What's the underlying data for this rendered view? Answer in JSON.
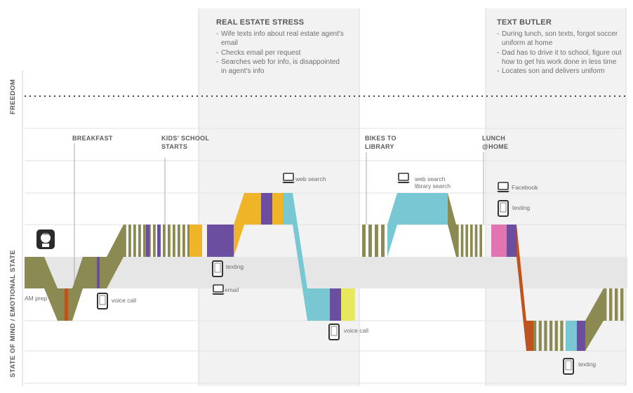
{
  "axis": {
    "freedom": "FREEDOM",
    "state": "STATE OF MIND / EMOTIONAL STATE"
  },
  "panels": [
    {
      "id": "real-estate",
      "title": "REAL ESTATE STRESS",
      "items": [
        "Wife texts info about real estate agent's email",
        "Checks email per request",
        "Searches web for info, is disappointed in agent's info"
      ]
    },
    {
      "id": "text-butler",
      "title": "TEXT BUTLER",
      "items": [
        "During lunch, son texts, forgot soccer uniform at home",
        "Dad has to drive it to school, figure out how to get his work done in less time",
        "Locates son and delivers uniform"
      ]
    }
  ],
  "milestones": [
    {
      "id": "breakfast",
      "label": "BREAKFAST"
    },
    {
      "id": "school",
      "label": "KIDS' SCHOOL STARTS"
    },
    {
      "id": "library",
      "label": "BIKES TO LIBRARY"
    },
    {
      "id": "lunch",
      "label": "LUNCH @HOME"
    }
  ],
  "touchpoints": [
    {
      "id": "am-prep",
      "label": "AM prep",
      "icon": "none"
    },
    {
      "id": "voice-call-1",
      "label": "voice call",
      "icon": "phone-icon"
    },
    {
      "id": "texting-1",
      "label": "texting",
      "icon": "phone-icon"
    },
    {
      "id": "email",
      "label": "email",
      "icon": "laptop-icon"
    },
    {
      "id": "web-search-1",
      "label": "web search",
      "icon": "laptop-icon"
    },
    {
      "id": "voice-call-2",
      "label": "voice call",
      "icon": "phone-icon"
    },
    {
      "id": "web-library-search",
      "label": "web search library search",
      "icon": "laptop-icon"
    },
    {
      "id": "facebook",
      "label": "Facebook",
      "icon": "laptop-icon"
    },
    {
      "id": "texting-2",
      "label": "texting",
      "icon": "phone-icon"
    },
    {
      "id": "texting-3",
      "label": "texting",
      "icon": "phone-icon"
    }
  ],
  "persona": {
    "icon": "person-icon"
  },
  "colors": {
    "olive": "#8a8a52",
    "purple": "#6b4ea0",
    "orange": "#f0b429",
    "rust": "#c0531c",
    "teal": "#78c8d4",
    "yellow": "#e8e85c",
    "pink": "#e274b2",
    "neutral_band": "#e6e6e6",
    "shade_panel": "#f1f1f1"
  }
}
